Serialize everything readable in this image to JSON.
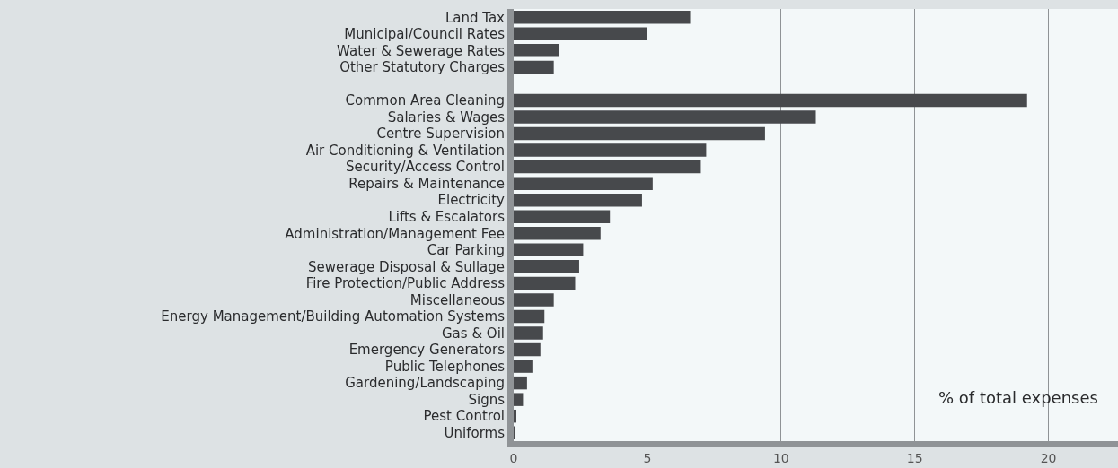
{
  "chart_data": {
    "type": "bar",
    "orientation": "horizontal",
    "xlabel": "% of total expenses",
    "categories": [
      "Land Tax",
      "Municipal/Council Rates",
      "Water & Sewerage Rates",
      "Other Statutory Charges",
      null,
      "Common Area Cleaning",
      "Salaries & Wages",
      "Centre Supervision",
      "Air Conditioning & Ventilation",
      "Security/Access Control",
      "Repairs & Maintenance",
      "Electricity",
      "Lifts & Escalators",
      "Administration/Management Fee",
      "Car Parking",
      "Sewerage Disposal & Sullage",
      "Fire Protection/Public Address",
      "Miscellaneous",
      "Energy Management/Building Automation Systems",
      "Gas & Oil",
      "Emergency Generators",
      "Public Telephones",
      "Gardening/Landscaping",
      "Signs",
      "Pest Control",
      "Uniforms"
    ],
    "values": [
      6.6,
      5.0,
      1.7,
      1.5,
      null,
      19.2,
      11.3,
      9.4,
      7.2,
      7.0,
      5.2,
      4.8,
      3.6,
      3.25,
      2.6,
      2.45,
      2.3,
      1.5,
      1.15,
      1.1,
      1.0,
      0.7,
      0.5,
      0.35,
      0.1,
      0.05
    ],
    "color": "#47494c",
    "xlim": [
      0,
      22.6
    ],
    "xticks": [
      0,
      5,
      10,
      15,
      20
    ],
    "grid": "x"
  }
}
